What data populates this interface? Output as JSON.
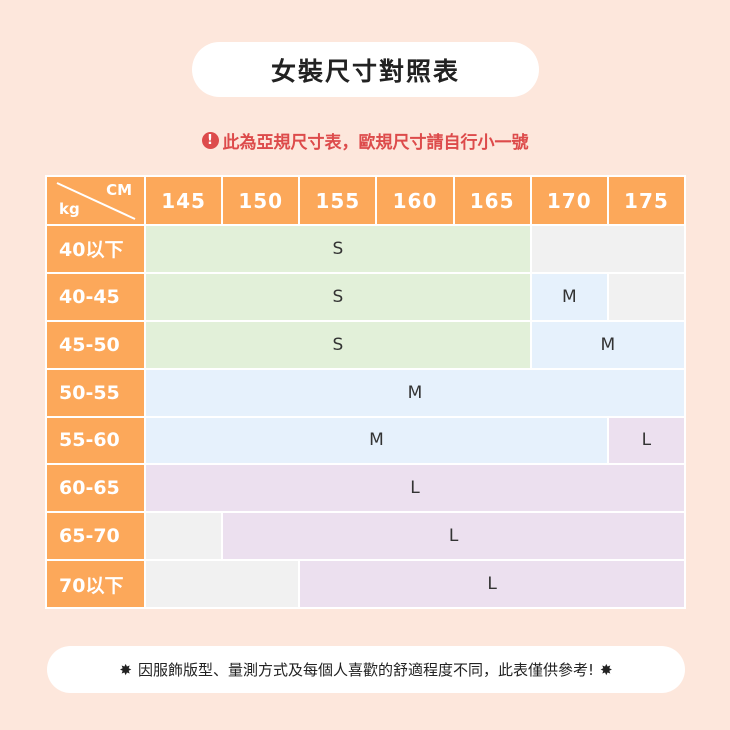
{
  "title": "女裝尺寸對照表",
  "warning": {
    "icon": "exclamation-circle-icon",
    "text": "此為亞規尺寸表，歐規尺寸請自行小一號"
  },
  "colors": {
    "header": "#fca85a",
    "S": "#e2f0d9",
    "M": "#e6f1fc",
    "L": "#ece0ef",
    "empty": "#f1f1f1",
    "background": "#fde7dc",
    "warning": "#dd4b4b"
  },
  "table": {
    "corner": {
      "col_unit": "CM",
      "row_unit": "kg"
    },
    "columns": [
      "145",
      "150",
      "155",
      "160",
      "165",
      "170",
      "175"
    ],
    "rows": [
      {
        "label": "40以下",
        "cells": [
          {
            "size": "S",
            "span": 5
          },
          {
            "size": "",
            "span": 2
          }
        ]
      },
      {
        "label": "40-45",
        "cells": [
          {
            "size": "S",
            "span": 5
          },
          {
            "size": "M",
            "span": 1
          },
          {
            "size": "",
            "span": 1
          }
        ]
      },
      {
        "label": "45-50",
        "cells": [
          {
            "size": "S",
            "span": 5
          },
          {
            "size": "M",
            "span": 2
          }
        ]
      },
      {
        "label": "50-55",
        "cells": [
          {
            "size": "M",
            "span": 7
          }
        ]
      },
      {
        "label": "55-60",
        "cells": [
          {
            "size": "M",
            "span": 6
          },
          {
            "size": "L",
            "span": 1
          }
        ]
      },
      {
        "label": "60-65",
        "cells": [
          {
            "size": "L",
            "span": 7
          }
        ]
      },
      {
        "label": "65-70",
        "cells": [
          {
            "size": "",
            "span": 1
          },
          {
            "size": "L",
            "span": 6
          }
        ]
      },
      {
        "label": "70以下",
        "cells": [
          {
            "size": "",
            "span": 2
          },
          {
            "size": "L",
            "span": 5
          }
        ]
      }
    ]
  },
  "note": {
    "icon": "starburst-icon",
    "text": "因服飾版型、量測方式及每個人喜歡的舒適程度不同，此表僅供參考!"
  }
}
